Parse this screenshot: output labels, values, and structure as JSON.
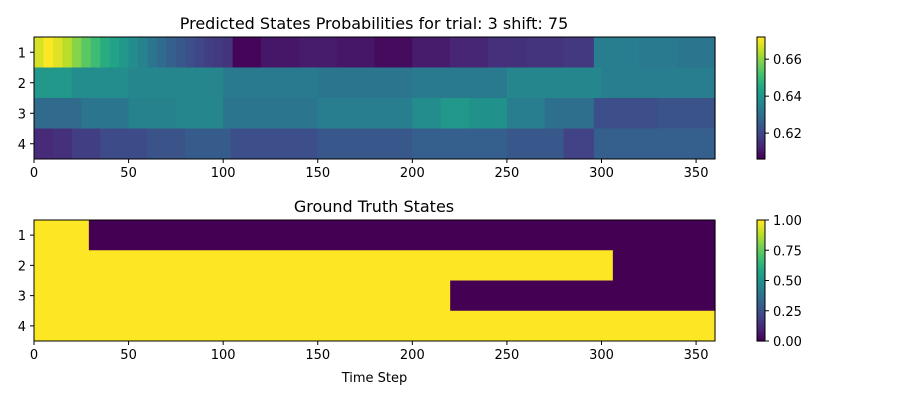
{
  "chart_data": [
    {
      "type": "heatmap",
      "title": "Predicted States Probabilities for trial: 3 shift: 75",
      "xlabel": "",
      "ylabel": "",
      "xlim": [
        0,
        360
      ],
      "x_ticks": [
        "0",
        "50",
        "100",
        "150",
        "200",
        "250",
        "300",
        "350"
      ],
      "x_tick_values": [
        0,
        50,
        100,
        150,
        200,
        250,
        300,
        350
      ],
      "y_ticks": [
        "1",
        "2",
        "3",
        "4"
      ],
      "colormap": "viridis",
      "colorbar": {
        "vmin": 0.606,
        "vmax": 0.672,
        "ticks": [
          "0.62",
          "0.64",
          "0.66"
        ],
        "tick_values": [
          0.62,
          0.64,
          0.66
        ]
      },
      "rows": [
        {
          "state": "1",
          "segments": [
            [
              0,
              5,
              0.668
            ],
            [
              5,
              10,
              0.672
            ],
            [
              10,
              15,
              0.669
            ],
            [
              15,
              20,
              0.665
            ],
            [
              20,
              25,
              0.66
            ],
            [
              25,
              30,
              0.655
            ],
            [
              30,
              35,
              0.651
            ],
            [
              35,
              40,
              0.647
            ],
            [
              40,
              45,
              0.644
            ],
            [
              45,
              50,
              0.641
            ],
            [
              50,
              55,
              0.638
            ],
            [
              55,
              60,
              0.635
            ],
            [
              60,
              65,
              0.632
            ],
            [
              65,
              70,
              0.629
            ],
            [
              70,
              75,
              0.626
            ],
            [
              75,
              80,
              0.624
            ],
            [
              80,
              85,
              0.622
            ],
            [
              85,
              90,
              0.62
            ],
            [
              90,
              95,
              0.618
            ],
            [
              95,
              100,
              0.617
            ],
            [
              100,
              105,
              0.616
            ],
            [
              105,
              120,
              0.607
            ],
            [
              120,
              140,
              0.61
            ],
            [
              140,
              160,
              0.611
            ],
            [
              160,
              180,
              0.61
            ],
            [
              180,
              200,
              0.608
            ],
            [
              200,
              220,
              0.611
            ],
            [
              220,
              240,
              0.613
            ],
            [
              240,
              260,
              0.615
            ],
            [
              260,
              280,
              0.616
            ],
            [
              280,
              296,
              0.617
            ],
            [
              296,
              320,
              0.634
            ],
            [
              320,
              340,
              0.633
            ],
            [
              340,
              360,
              0.632
            ]
          ]
        },
        {
          "state": "2",
          "segments": [
            [
              0,
              20,
              0.641
            ],
            [
              20,
              50,
              0.638
            ],
            [
              50,
              100,
              0.636
            ],
            [
              100,
              150,
              0.633
            ],
            [
              150,
              200,
              0.632
            ],
            [
              200,
              250,
              0.633
            ],
            [
              250,
              300,
              0.636
            ],
            [
              300,
              360,
              0.634
            ]
          ]
        },
        {
          "state": "3",
          "segments": [
            [
              0,
              25,
              0.629
            ],
            [
              25,
              50,
              0.632
            ],
            [
              50,
              75,
              0.635
            ],
            [
              75,
              100,
              0.636
            ],
            [
              100,
              150,
              0.632
            ],
            [
              150,
              200,
              0.634
            ],
            [
              200,
              215,
              0.638
            ],
            [
              215,
              230,
              0.641
            ],
            [
              230,
              250,
              0.639
            ],
            [
              250,
              270,
              0.634
            ],
            [
              270,
              296,
              0.63
            ],
            [
              296,
              330,
              0.622
            ],
            [
              330,
              360,
              0.623
            ]
          ]
        },
        {
          "state": "4",
          "segments": [
            [
              0,
              10,
              0.614
            ],
            [
              10,
              20,
              0.615
            ],
            [
              20,
              35,
              0.618
            ],
            [
              35,
              60,
              0.621
            ],
            [
              60,
              80,
              0.623
            ],
            [
              80,
              104,
              0.625
            ],
            [
              104,
              150,
              0.622
            ],
            [
              150,
              200,
              0.624
            ],
            [
              200,
              250,
              0.626
            ],
            [
              250,
              280,
              0.624
            ],
            [
              280,
              296,
              0.619
            ],
            [
              296,
              360,
              0.626
            ]
          ]
        }
      ]
    },
    {
      "type": "heatmap",
      "title": "Ground Truth States",
      "xlabel": "Time Step",
      "ylabel": "",
      "xlim": [
        0,
        360
      ],
      "x_ticks": [
        "0",
        "50",
        "100",
        "150",
        "200",
        "250",
        "300",
        "350"
      ],
      "x_tick_values": [
        0,
        50,
        100,
        150,
        200,
        250,
        300,
        350
      ],
      "y_ticks": [
        "1",
        "2",
        "3",
        "4"
      ],
      "colormap": "viridis",
      "colorbar": {
        "vmin": 0,
        "vmax": 1,
        "ticks": [
          "0.00",
          "0.25",
          "0.50",
          "0.75",
          "1.00"
        ],
        "tick_values": [
          0,
          0.25,
          0.5,
          0.75,
          1
        ]
      },
      "rows": [
        {
          "state": "1",
          "segments": [
            [
              0,
              29,
              1
            ],
            [
              29,
              360,
              0
            ]
          ]
        },
        {
          "state": "2",
          "segments": [
            [
              0,
              306,
              1
            ],
            [
              306,
              360,
              0
            ]
          ]
        },
        {
          "state": "3",
          "segments": [
            [
              0,
              220,
              1
            ],
            [
              220,
              360,
              0
            ]
          ]
        },
        {
          "state": "4",
          "segments": [
            [
              0,
              360,
              1
            ]
          ]
        }
      ]
    }
  ]
}
